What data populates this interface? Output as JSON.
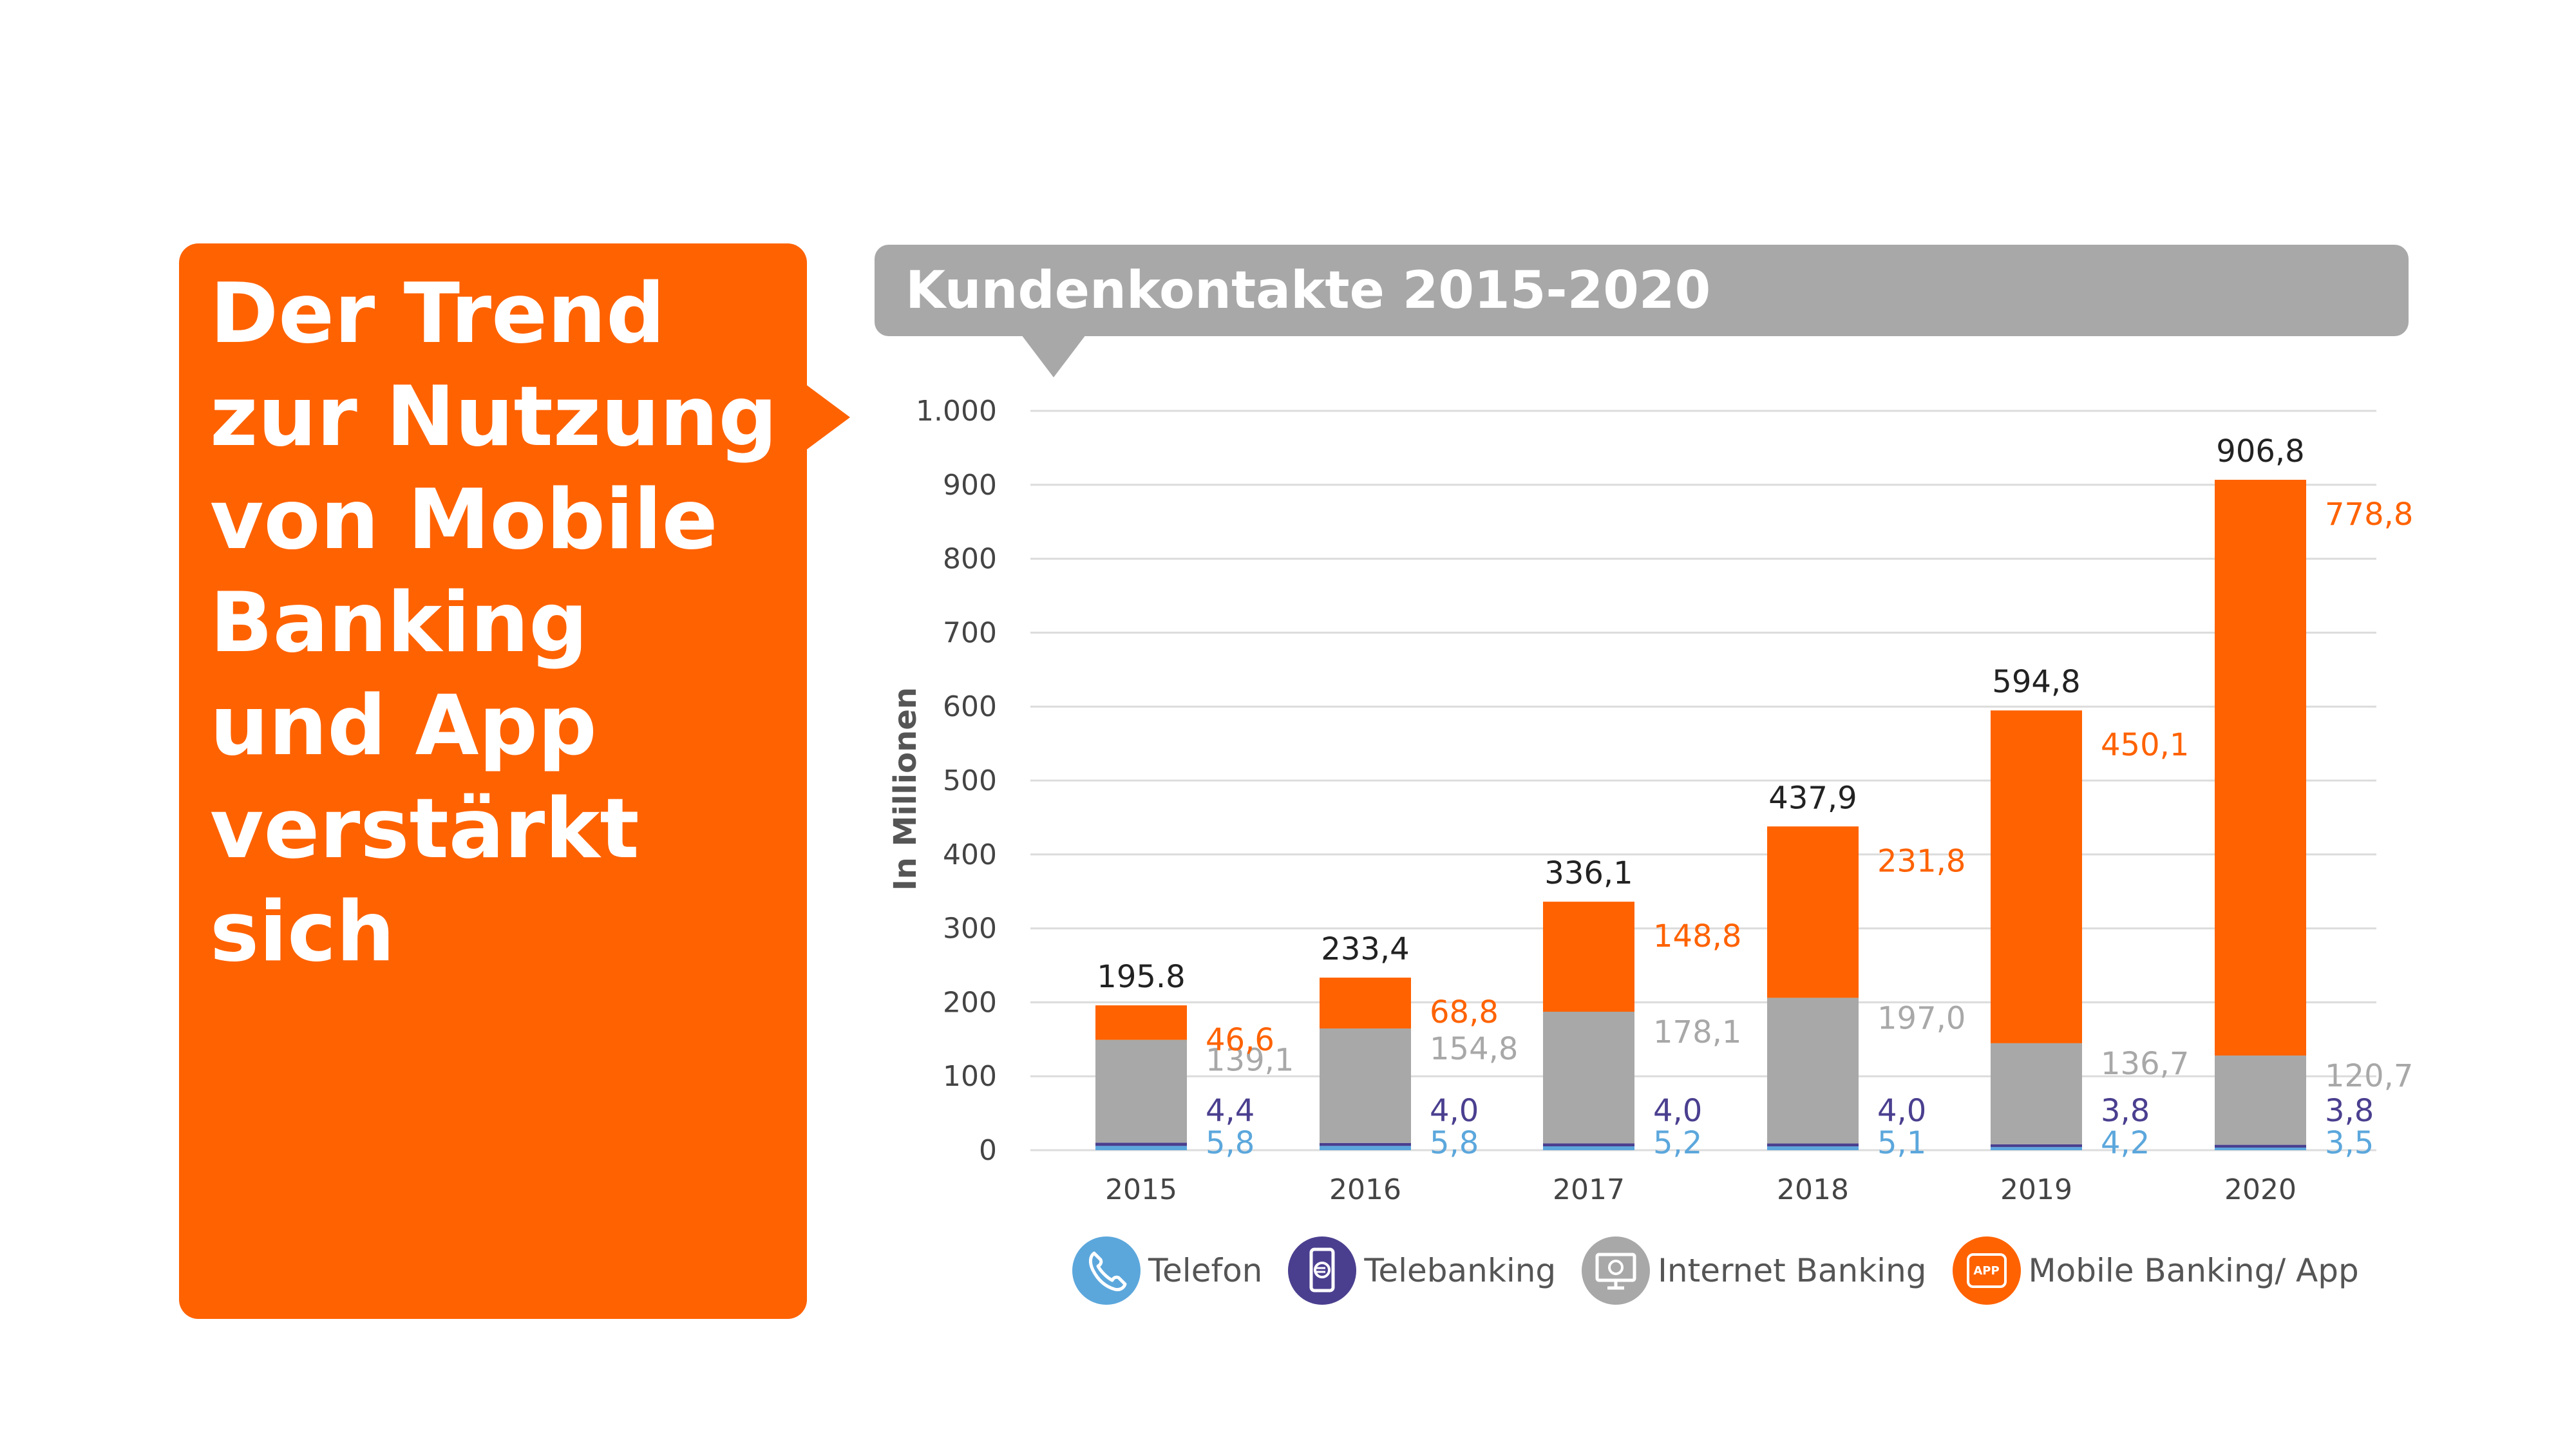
{
  "headline": "Der Trend zur Nutzung von Mobile Banking und App verstärkt sich",
  "chart_title": "Kundenkontakte 2015-2020",
  "colors": {
    "brand_orange": "#ff6200",
    "telefon": "#5ba7dc",
    "telebanking": "#4a3f8f",
    "internet_banking": "#a8a8a8",
    "mobile_app": "#ff6200",
    "total": "#222222"
  },
  "legend": [
    {
      "label": "Telefon",
      "icon": "phone-icon"
    },
    {
      "label": "Telebanking",
      "icon": "mobile-euro-icon"
    },
    {
      "label": "Internet Banking",
      "icon": "monitor-euro-icon"
    },
    {
      "label": "Mobile Banking/ App",
      "icon": "app-icon",
      "icon_text": "APP"
    }
  ],
  "chart_data": {
    "type": "bar",
    "stacked": true,
    "categories": [
      "2015",
      "2016",
      "2017",
      "2018",
      "2019",
      "2020"
    ],
    "ylabel": "In Millionen",
    "ylim": [
      0,
      1000
    ],
    "yticks": [
      0,
      100,
      200,
      300,
      400,
      500,
      600,
      700,
      800,
      900,
      1000
    ],
    "ytick_labels": [
      "0",
      "100",
      "200",
      "300",
      "400",
      "500",
      "600",
      "700",
      "800",
      "900",
      "1.000"
    ],
    "grid": true,
    "legend_position": "bottom",
    "series": [
      {
        "name": "Telefon",
        "values": [
          5.8,
          5.8,
          5.2,
          5.1,
          4.2,
          3.5
        ],
        "labels": [
          "5,8",
          "5,8",
          "5,2",
          "5,1",
          "4,2",
          "3,5"
        ]
      },
      {
        "name": "Telebanking",
        "values": [
          4.4,
          4.0,
          4.0,
          4.0,
          3.8,
          3.8
        ],
        "labels": [
          "4,4",
          "4,0",
          "4,0",
          "4,0",
          "3,8",
          "3,8"
        ]
      },
      {
        "name": "Internet Banking",
        "values": [
          139.1,
          154.8,
          178.1,
          197.0,
          136.7,
          120.7
        ],
        "labels": [
          "139,1",
          "154,8",
          "178,1",
          "197,0",
          "136,7",
          "120,7"
        ]
      },
      {
        "name": "Mobile Banking/ App",
        "values": [
          46.6,
          68.8,
          148.8,
          231.8,
          450.1,
          778.8
        ],
        "labels": [
          "46,6",
          "68,8",
          "148,8",
          "231,8",
          "450,1",
          "778,8"
        ]
      }
    ],
    "totals": [
      195.8,
      233.4,
      336.1,
      437.9,
      594.8,
      906.8
    ],
    "total_labels": [
      "195.8",
      "233,4",
      "336,1",
      "437,9",
      "594,8",
      "906,8"
    ]
  }
}
